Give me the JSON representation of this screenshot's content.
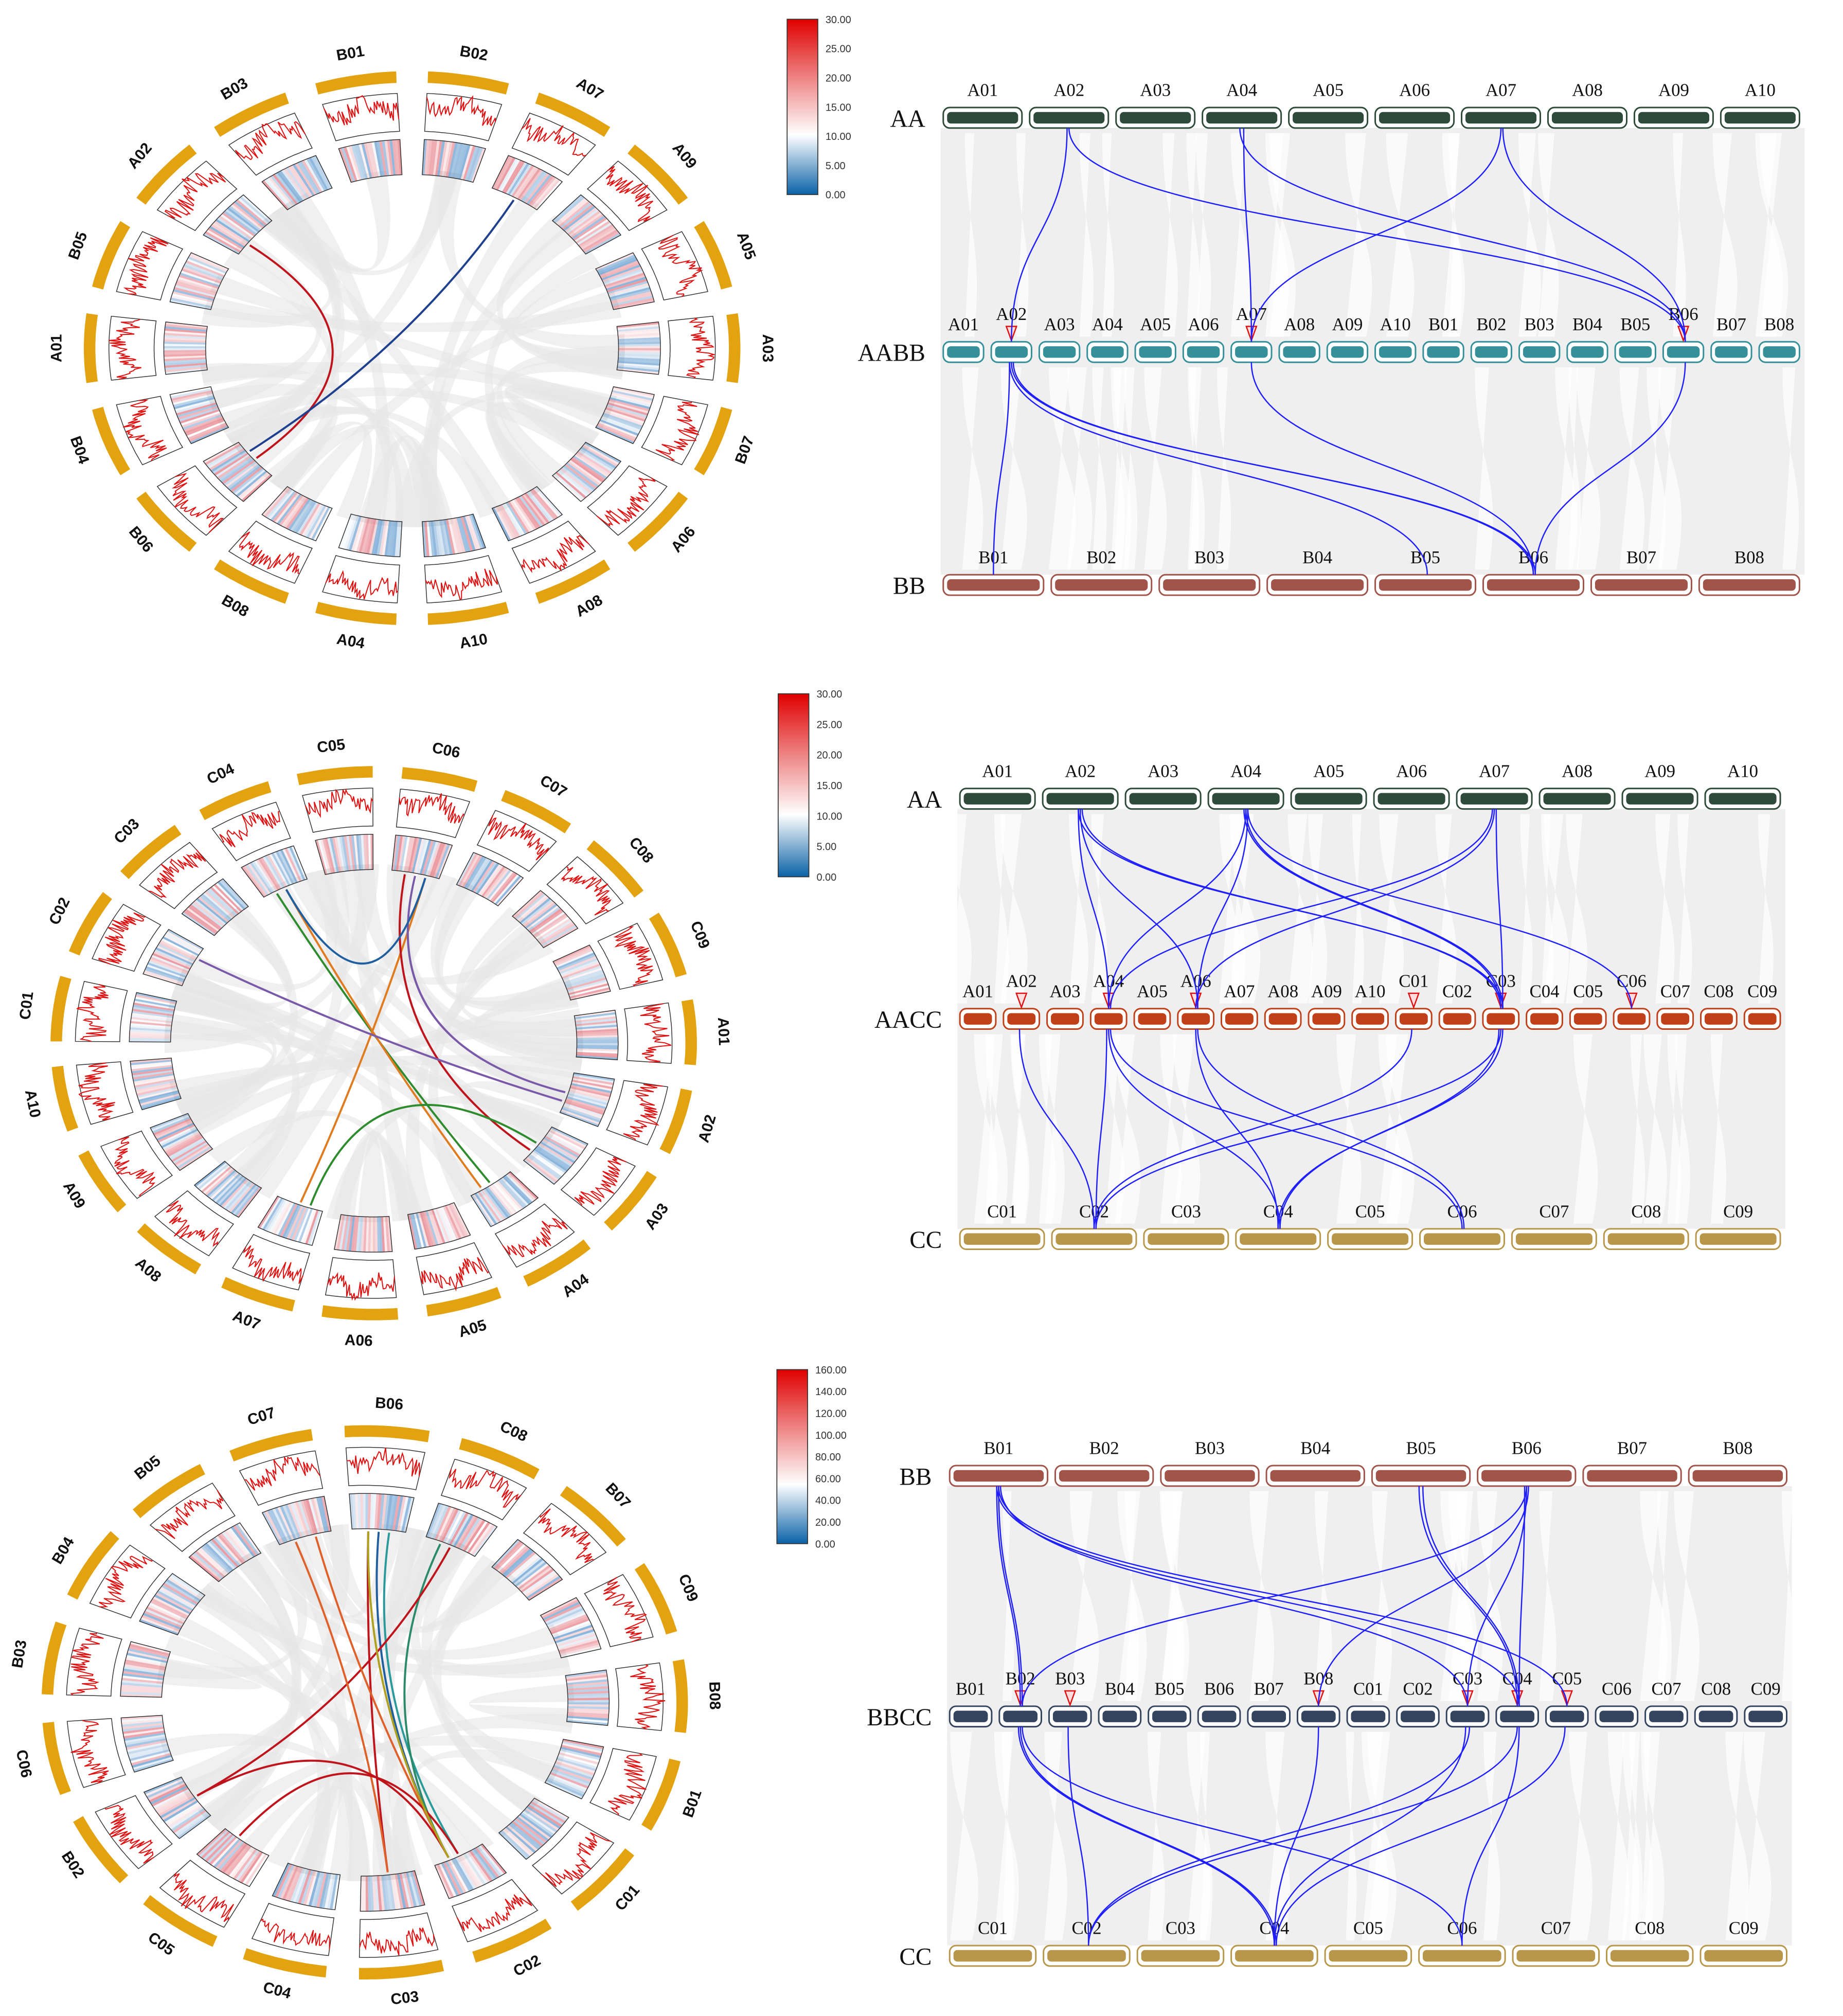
{
  "panels": [
    {
      "circos": {
        "chromosomes": [
          "B01",
          "B02",
          "A07",
          "A09",
          "A05",
          "A03",
          "B07",
          "A06",
          "A08",
          "A10",
          "A04",
          "B08",
          "B06",
          "B04",
          "A01",
          "B05",
          "A02",
          "B03"
        ],
        "links": [
          [
            "A02",
            "B06",
            "#c0141c"
          ],
          [
            "A07",
            "B06",
            "#1f3f8f"
          ]
        ],
        "colorbar": {
          "ticks": [
            "30.00",
            "25.00",
            "20.00",
            "15.00",
            "10.00",
            "5.00",
            "0.00"
          ],
          "min": 0,
          "max": 30
        }
      },
      "synteny": {
        "rows": [
          {
            "name": "AA",
            "color": "#2e4a3a",
            "chromosomes": [
              "A01",
              "A02",
              "A03",
              "A04",
              "A05",
              "A06",
              "A07",
              "A08",
              "A09",
              "A10"
            ],
            "markers": []
          },
          {
            "name": "AABB",
            "color": "#35909a",
            "chromosomes": [
              "A01",
              "A02",
              "A03",
              "A04",
              "A05",
              "A06",
              "A07",
              "A08",
              "A09",
              "A10",
              "B01",
              "B02",
              "B03",
              "B04",
              "B05",
              "B06",
              "B07",
              "B08"
            ],
            "markers": [
              "A02",
              "A07",
              "B06"
            ]
          },
          {
            "name": "BB",
            "color": "#a0544a",
            "chromosomes": [
              "B01",
              "B02",
              "B03",
              "B04",
              "B05",
              "B06",
              "B07",
              "B08"
            ],
            "markers": []
          }
        ],
        "links_top": [
          [
            "A02",
            "A02"
          ],
          [
            "A02",
            "B06"
          ],
          [
            "A04",
            "A07"
          ],
          [
            "A04",
            "B06"
          ],
          [
            "A07",
            "A07"
          ],
          [
            "A07",
            "B06"
          ]
        ],
        "links_bottom": [
          [
            "A02",
            "B01"
          ],
          [
            "A02",
            "B06"
          ],
          [
            "A02",
            "B06"
          ],
          [
            "A02",
            "B05"
          ],
          [
            "A07",
            "B06"
          ],
          [
            "B06",
            "B06"
          ]
        ]
      }
    },
    {
      "circos": {
        "chromosomes": [
          "C05",
          "C06",
          "C07",
          "C08",
          "C09",
          "A01",
          "A02",
          "A03",
          "A04",
          "A05",
          "A06",
          "A07",
          "A08",
          "A09",
          "A10",
          "C01",
          "C02",
          "C03",
          "C04"
        ],
        "links": [
          [
            "C04",
            "A04",
            "#2e8b2e"
          ],
          [
            "C04",
            "A04",
            "#e07b20"
          ],
          [
            "C06",
            "A07",
            "#e07b20"
          ],
          [
            "C06",
            "A03",
            "#c0141c"
          ],
          [
            "C06",
            "A02",
            "#7a5aa8"
          ],
          [
            "C02",
            "A02",
            "#7a5aa8"
          ],
          [
            "A07",
            "A03",
            "#2e8b2e"
          ],
          [
            "C04",
            "C06",
            "#1f5f9f"
          ]
        ],
        "colorbar": {
          "ticks": [
            "30.00",
            "25.00",
            "20.00",
            "15.00",
            "10.00",
            "5.00",
            "0.00"
          ],
          "min": 0,
          "max": 30
        }
      },
      "synteny": {
        "rows": [
          {
            "name": "AA",
            "color": "#2e4a3a",
            "chromosomes": [
              "A01",
              "A02",
              "A03",
              "A04",
              "A05",
              "A06",
              "A07",
              "A08",
              "A09",
              "A10"
            ],
            "markers": []
          },
          {
            "name": "AACC",
            "color": "#c0401a",
            "chromosomes": [
              "A01",
              "A02",
              "A03",
              "A04",
              "A05",
              "A06",
              "A07",
              "A08",
              "A09",
              "A10",
              "C01",
              "C02",
              "C03",
              "C04",
              "C05",
              "C06",
              "C07",
              "C08",
              "C09"
            ],
            "markers": [
              "A02",
              "A04",
              "A06",
              "C01",
              "C03",
              "C06"
            ]
          },
          {
            "name": "CC",
            "color": "#b8964a",
            "chromosomes": [
              "C01",
              "C02",
              "C03",
              "C04",
              "C05",
              "C06",
              "C07",
              "C08",
              "C09"
            ],
            "markers": []
          }
        ],
        "links_top": [
          [
            "A02",
            "A04"
          ],
          [
            "A02",
            "A06"
          ],
          [
            "A02",
            "C03"
          ],
          [
            "A02",
            "C03"
          ],
          [
            "A04",
            "A04"
          ],
          [
            "A04",
            "A06"
          ],
          [
            "A04",
            "C03"
          ],
          [
            "A04",
            "C03"
          ],
          [
            "A04",
            "C06"
          ],
          [
            "A07",
            "A04"
          ],
          [
            "A07",
            "A06"
          ],
          [
            "A07",
            "C03"
          ]
        ],
        "links_bottom": [
          [
            "A02",
            "C02"
          ],
          [
            "A04",
            "C04"
          ],
          [
            "A04",
            "C06"
          ],
          [
            "A04",
            "C02"
          ],
          [
            "A06",
            "C04"
          ],
          [
            "A06",
            "C06"
          ],
          [
            "C01",
            "C02"
          ],
          [
            "C03",
            "C02"
          ],
          [
            "C03",
            "C04"
          ],
          [
            "C03",
            "C04"
          ]
        ]
      }
    },
    {
      "circos": {
        "chromosomes": [
          "B06",
          "C08",
          "B07",
          "C09",
          "B08",
          "B01",
          "C01",
          "C02",
          "C03",
          "C04",
          "C05",
          "B02",
          "C06",
          "B03",
          "B04",
          "B05",
          "C07"
        ],
        "links": [
          [
            "B06",
            "C03",
            "#c0141c"
          ],
          [
            "B06",
            "C02",
            "#1f5f9f"
          ],
          [
            "B06",
            "C02",
            "#2a9a9a"
          ],
          [
            "C08",
            "C02",
            "#2a8a6a"
          ],
          [
            "C08",
            "B02",
            "#c0141c"
          ],
          [
            "C07",
            "C02",
            "#e0602a"
          ],
          [
            "C07",
            "C03",
            "#e0602a"
          ],
          [
            "B02",
            "C02",
            "#c0141c"
          ],
          [
            "C05",
            "C02",
            "#c0141c"
          ],
          [
            "B06",
            "C02",
            "#b0a020"
          ]
        ],
        "colorbar": {
          "ticks": [
            "160.00",
            "140.00",
            "120.00",
            "100.00",
            "80.00",
            "60.00",
            "40.00",
            "20.00",
            "0.00"
          ],
          "min": 0,
          "max": 160
        }
      },
      "synteny": {
        "rows": [
          {
            "name": "BB",
            "color": "#a0544a",
            "chromosomes": [
              "B01",
              "B02",
              "B03",
              "B04",
              "B05",
              "B06",
              "B07",
              "B08"
            ],
            "markers": []
          },
          {
            "name": "BBCC",
            "color": "#34445f",
            "chromosomes": [
              "B01",
              "B02",
              "B03",
              "B04",
              "B05",
              "B06",
              "B07",
              "B08",
              "C01",
              "C02",
              "C03",
              "C04",
              "C05",
              "C06",
              "C07",
              "C08",
              "C09"
            ],
            "markers": [
              "B02",
              "B03",
              "B08",
              "C03",
              "C04",
              "C05"
            ]
          },
          {
            "name": "CC",
            "color": "#b8964a",
            "chromosomes": [
              "C01",
              "C02",
              "C03",
              "C04",
              "C05",
              "C06",
              "C07",
              "C08",
              "C09"
            ],
            "markers": []
          }
        ],
        "links_top": [
          [
            "B01",
            "B02"
          ],
          [
            "B01",
            "B02"
          ],
          [
            "B01",
            "C03"
          ],
          [
            "B01",
            "C04"
          ],
          [
            "B01",
            "C05"
          ],
          [
            "B05",
            "C04"
          ],
          [
            "B05",
            "C04"
          ],
          [
            "B06",
            "B02"
          ],
          [
            "B06",
            "B08"
          ],
          [
            "B06",
            "C04"
          ],
          [
            "B06",
            "C03"
          ]
        ],
        "links_bottom": [
          [
            "B02",
            "C04"
          ],
          [
            "B02",
            "C04"
          ],
          [
            "B02",
            "C06"
          ],
          [
            "B03",
            "C02"
          ],
          [
            "B08",
            "C04"
          ],
          [
            "C03",
            "C02"
          ],
          [
            "C03",
            "C04"
          ],
          [
            "C04",
            "C02"
          ],
          [
            "C04",
            "C06"
          ],
          [
            "C05",
            "C04"
          ]
        ]
      }
    }
  ]
}
